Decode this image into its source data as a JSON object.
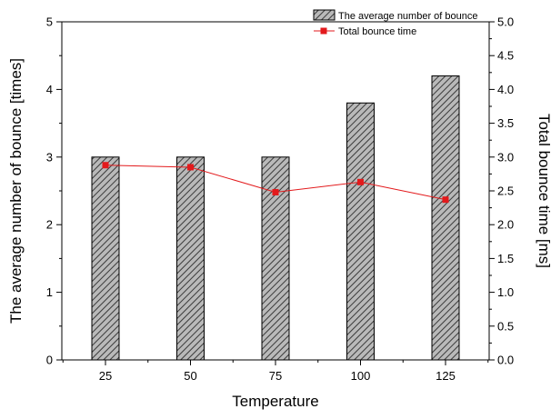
{
  "chart_data": {
    "type": "bar",
    "categories": [
      "25",
      "50",
      "75",
      "100",
      "125"
    ],
    "xlabel": "Temperature",
    "ylabel": "The average number of bounce [times]",
    "y2label": "Total bounce time [ms]",
    "ylim": [
      0,
      5
    ],
    "y2lim": [
      0,
      5.0
    ],
    "yticks": [
      "0",
      "1",
      "2",
      "3",
      "4",
      "5"
    ],
    "y2ticks": [
      "0.0",
      "0.5",
      "1.0",
      "1.5",
      "2.0",
      "2.5",
      "3.0",
      "3.5",
      "4.0",
      "4.5",
      "5.0"
    ],
    "series": [
      {
        "name": "The average number of bounce",
        "type": "bar",
        "axis": "left",
        "values": [
          3.0,
          3.0,
          3.0,
          3.8,
          4.2
        ]
      },
      {
        "name": "Total bounce time",
        "type": "line",
        "axis": "right",
        "values": [
          2.88,
          2.85,
          2.48,
          2.63,
          2.37
        ]
      }
    ],
    "legend_position": "top-right",
    "grid": false,
    "colors": {
      "bar_fill": "#b9b9b9",
      "bar_hatch": "#3a3a3a",
      "line": "#e31a1c"
    }
  }
}
